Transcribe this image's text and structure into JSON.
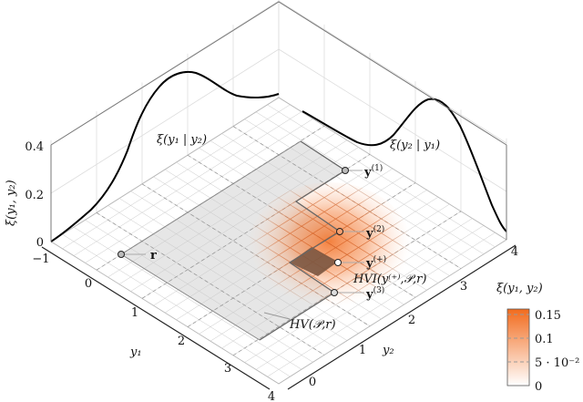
{
  "chart_data": {
    "type": "surface",
    "title": "",
    "xlabel": "y1",
    "ylabel": "y2",
    "zlabel": "ξ(y1, y2)",
    "xlim": [
      -1,
      4
    ],
    "ylim": [
      -1,
      4
    ],
    "zlim": [
      0,
      0.4
    ],
    "x_ticks": [
      "−1",
      "0",
      "1",
      "2",
      "3",
      "4"
    ],
    "y_ticks": [
      "0",
      "1",
      "2",
      "3",
      "4"
    ],
    "z_ticks": [
      "0",
      "0.2",
      "0.4"
    ],
    "x_label_text": "y₁",
    "y_label_text": "y₂",
    "z_label_text": "ξ(y₁, y₂)",
    "marginal_labels": {
      "left": "ξ(y₁ | y₂)",
      "right": "ξ(y₂ | y₁)"
    },
    "surface_label": "ξ(y₁, y₂)",
    "points": [
      {
        "name": "r",
        "label": "r",
        "y1": 0.0,
        "y2": -0.5
      },
      {
        "name": "y1",
        "label": "y",
        "sup": "(1)",
        "y1": 1.0,
        "y2": 3.5
      },
      {
        "name": "y2",
        "label": "y",
        "sup": "(2)",
        "y1": 1.8,
        "y2": 2.3
      },
      {
        "name": "yplus",
        "label": "y",
        "sup": "(+)",
        "y1": 2.3,
        "y2": 1.7
      },
      {
        "name": "y3",
        "label": "y",
        "sup": "(3)",
        "y1": 2.9,
        "y2": 1.1
      }
    ],
    "annotations": {
      "hvi": "HVI(y⁽⁺⁾,𝒫,r)",
      "hv": "HV(𝒫,r)"
    },
    "colorbar": {
      "ticks": [
        "0.15",
        "0.1",
        "5 · 10⁻²",
        "0"
      ],
      "range": [
        0,
        0.16
      ],
      "colors": [
        "#ffffff",
        "#f26b1d"
      ]
    },
    "colors": {
      "surface": "#f26b1d",
      "dominated": "#e6e6e6",
      "hvi_patch": "#7a5540",
      "curve": "#000000"
    }
  }
}
